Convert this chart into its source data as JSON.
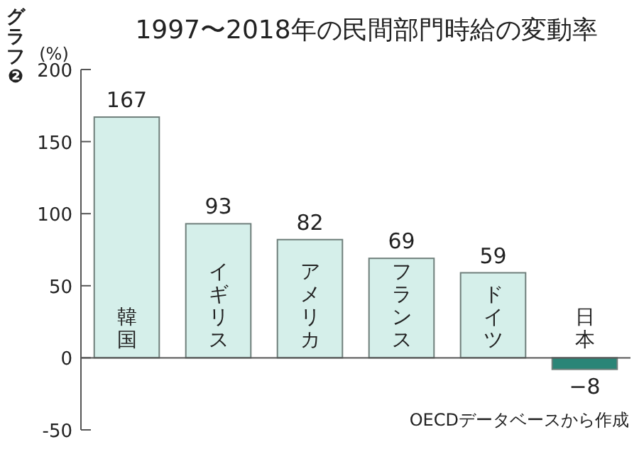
{
  "chart_data": {
    "type": "bar",
    "title": "1997〜2018年の民間部門時給の変動率",
    "ylabel": "(%)",
    "categories": [
      "韓国",
      "イギリス",
      "アメリカ",
      "フランス",
      "ドイツ",
      "日本"
    ],
    "values": [
      167,
      93,
      82,
      69,
      59,
      -8
    ],
    "colors": [
      "#d5efea",
      "#d5efea",
      "#d5efea",
      "#d5efea",
      "#d5efea",
      "#2a8577"
    ],
    "ylim": [
      -50,
      200
    ],
    "yticks": [
      -50,
      0,
      50,
      100,
      150,
      200
    ],
    "data_labels": true,
    "grid": false,
    "annotations": [
      "グラフ❷",
      "OECDデータベースから作成"
    ]
  }
}
